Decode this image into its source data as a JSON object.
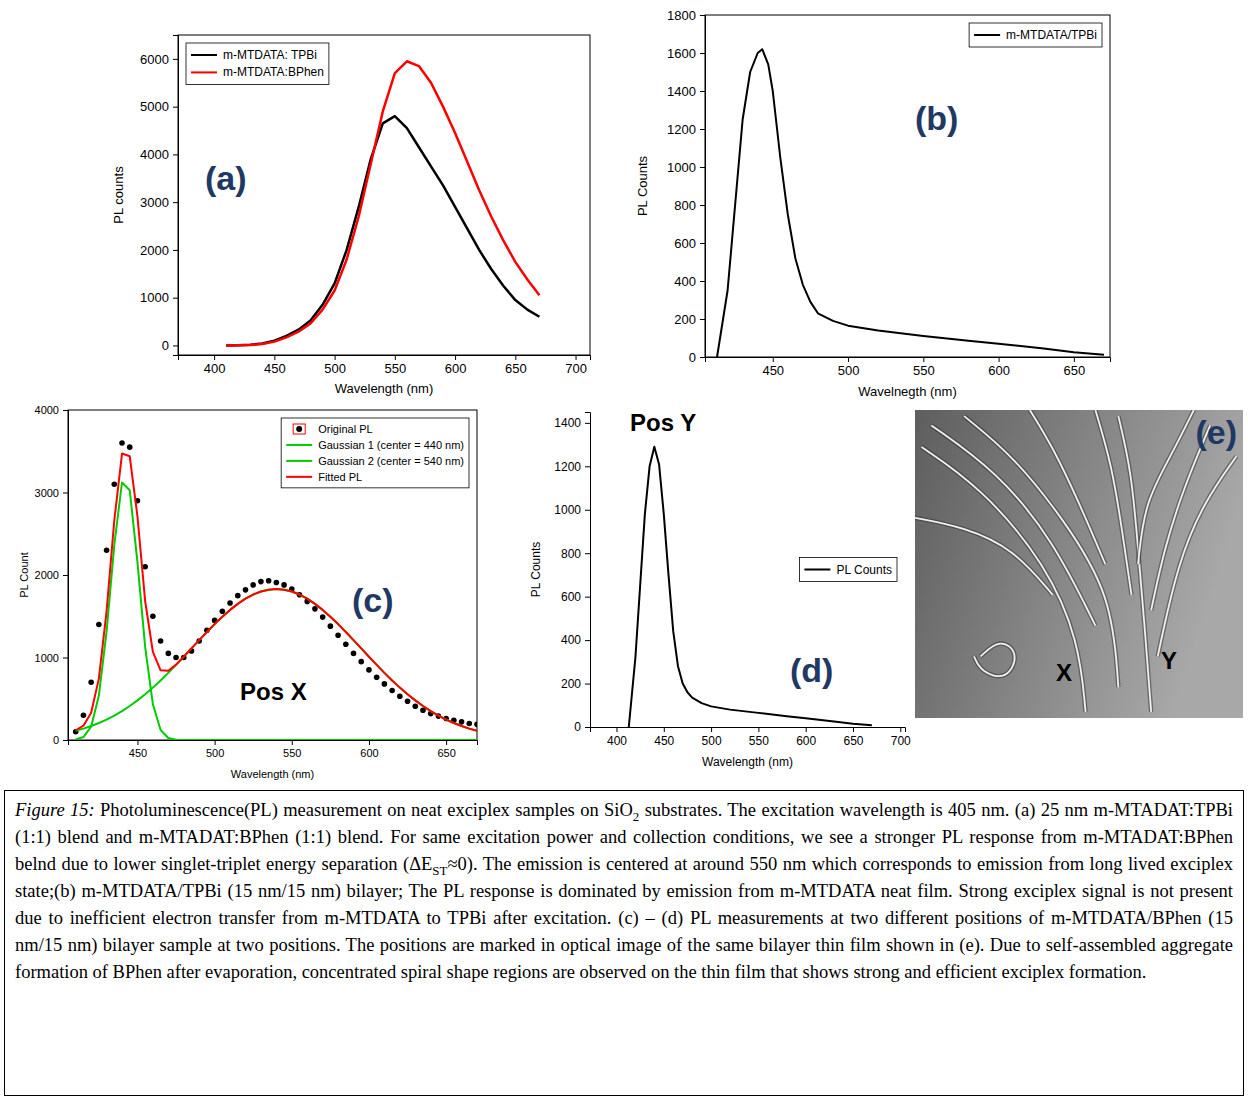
{
  "chart_data": [
    {
      "type": "line",
      "panel_label": "(a)",
      "x_label": "Wavelength (nm)",
      "y_label": "PL counts",
      "x": [
        410,
        420,
        430,
        440,
        450,
        460,
        470,
        480,
        490,
        500,
        510,
        520,
        530,
        540,
        550,
        560,
        570,
        580,
        590,
        600,
        610,
        620,
        630,
        640,
        650,
        660,
        670
      ],
      "xlim": [
        370,
        712
      ],
      "xticks": [
        400,
        450,
        500,
        550,
        600,
        650,
        700
      ],
      "ylim": [
        -200,
        6500
      ],
      "yticks": [
        0,
        1000,
        2000,
        3000,
        4000,
        5000,
        6000
      ],
      "legend": "top-left",
      "series": [
        {
          "name": "m-MTDATA: TPBi",
          "color": "#000000",
          "values": [
            0,
            5,
            15,
            40,
            100,
            200,
            330,
            520,
            850,
            1300,
            2000,
            2900,
            3900,
            4650,
            4800,
            4550,
            4150,
            3750,
            3350,
            2900,
            2450,
            2000,
            1600,
            1250,
            950,
            750,
            600
          ]
        },
        {
          "name": "m-MTDATA:BPhen",
          "color": "#ff0000",
          "values": [
            0,
            3,
            10,
            30,
            80,
            170,
            290,
            460,
            750,
            1150,
            1800,
            2700,
            3800,
            4900,
            5700,
            5950,
            5850,
            5500,
            5000,
            4450,
            3850,
            3250,
            2700,
            2200,
            1750,
            1380,
            1050
          ]
        }
      ]
    },
    {
      "type": "line",
      "panel_label": "(b)",
      "x_label": "Wavelnegth (nm)",
      "y_label": "PL Counts",
      "x": [
        413,
        420,
        425,
        430,
        435,
        440,
        443,
        447,
        450,
        455,
        460,
        465,
        470,
        475,
        480,
        490,
        500,
        520,
        550,
        580,
        600,
        630,
        650,
        670
      ],
      "xlim": [
        405,
        674
      ],
      "xticks": [
        450,
        500,
        550,
        600,
        650
      ],
      "ylim": [
        0,
        1800
      ],
      "yticks": [
        0,
        200,
        400,
        600,
        800,
        1000,
        1200,
        1400,
        1600,
        1800
      ],
      "legend": "top-right",
      "series": [
        {
          "name": "m-MTDATA/TPBi",
          "color": "#000000",
          "values": [
            0,
            350,
            800,
            1250,
            1500,
            1600,
            1620,
            1540,
            1400,
            1050,
            750,
            520,
            380,
            290,
            230,
            190,
            165,
            140,
            110,
            85,
            70,
            45,
            25,
            12
          ]
        }
      ]
    },
    {
      "type": "line",
      "panel_label": "(c)",
      "x_label": "Wavelength (nm)",
      "y_label": "PL Count",
      "annotation": "Pos X",
      "x": [
        410,
        415,
        420,
        425,
        430,
        435,
        440,
        445,
        450,
        455,
        460,
        465,
        470,
        475,
        480,
        485,
        490,
        495,
        500,
        505,
        510,
        515,
        520,
        525,
        530,
        535,
        540,
        545,
        550,
        555,
        560,
        565,
        570,
        575,
        580,
        585,
        590,
        595,
        600,
        605,
        610,
        615,
        620,
        625,
        630,
        635,
        640,
        645,
        650,
        655,
        660,
        665,
        670
      ],
      "xlim": [
        405,
        670
      ],
      "xticks": [
        450,
        500,
        550,
        600,
        650
      ],
      "ylim": [
        0,
        4000
      ],
      "yticks": [
        0,
        1000,
        2000,
        3000,
        4000
      ],
      "legend": "top-right",
      "series": [
        {
          "name": "Original PL",
          "type": "scatter",
          "marker": "circle",
          "color": "#000000",
          "values": [
            100,
            300,
            700,
            1400,
            2300,
            3100,
            3600,
            3550,
            2900,
            2100,
            1500,
            1200,
            1050,
            1000,
            1000,
            1080,
            1200,
            1330,
            1450,
            1560,
            1660,
            1750,
            1820,
            1880,
            1920,
            1930,
            1910,
            1880,
            1830,
            1760,
            1680,
            1590,
            1490,
            1380,
            1270,
            1160,
            1050,
            950,
            850,
            760,
            680,
            600,
            530,
            470,
            410,
            360,
            320,
            290,
            260,
            240,
            220,
            200,
            190
          ]
        },
        {
          "name": "Gaussian 1 (center = 440 nm)",
          "color": "#00cc00",
          "values": [
            6,
            36,
            161,
            538,
            1315,
            2366,
            3122,
            3027,
            2156,
            1127,
            433,
            122,
            25,
            4,
            0,
            0,
            0,
            0,
            0,
            0,
            0,
            0,
            0,
            0,
            0,
            0,
            0,
            0,
            0,
            0,
            0,
            0,
            0,
            0,
            0,
            0,
            0,
            0,
            0,
            0,
            0,
            0,
            0,
            0,
            0,
            0,
            0,
            0,
            0,
            0,
            0,
            0,
            0
          ]
        },
        {
          "name": "Gaussian 2 (center = 540 nm)",
          "color": "#00cc00",
          "values": [
            112,
            138,
            170,
            206,
            248,
            296,
            350,
            412,
            480,
            555,
            635,
            722,
            814,
            910,
            1009,
            1110,
            1211,
            1309,
            1405,
            1495,
            1577,
            1650,
            1713,
            1763,
            1800,
            1822,
            1830,
            1822,
            1800,
            1763,
            1713,
            1650,
            1577,
            1495,
            1405,
            1309,
            1211,
            1110,
            1009,
            910,
            814,
            722,
            635,
            555,
            480,
            412,
            350,
            296,
            248,
            206,
            170,
            138,
            112
          ]
        },
        {
          "name": "Fitted PL",
          "color": "#ff0000",
          "values": [
            118,
            174,
            331,
            744,
            1563,
            2662,
            3472,
            3439,
            2711,
            1682,
            1068,
            844,
            839,
            914,
            1009,
            1110,
            1211,
            1309,
            1405,
            1495,
            1577,
            1650,
            1713,
            1763,
            1800,
            1822,
            1830,
            1822,
            1800,
            1763,
            1713,
            1650,
            1577,
            1495,
            1405,
            1309,
            1211,
            1110,
            1009,
            910,
            814,
            722,
            635,
            555,
            480,
            412,
            350,
            296,
            248,
            206,
            170,
            138,
            112
          ]
        }
      ]
    },
    {
      "type": "line",
      "panel_label": "(d)",
      "x_label": "Wavelength (nm)",
      "y_label": "PL Counts",
      "annotation": "Pos Y",
      "x": [
        413,
        420,
        425,
        430,
        435,
        440,
        445,
        450,
        455,
        460,
        465,
        470,
        475,
        480,
        490,
        500,
        520,
        550,
        580,
        600,
        630,
        650,
        670
      ],
      "xlim": [
        372,
        705
      ],
      "xticks": [
        400,
        450,
        500,
        550,
        600,
        650,
        700
      ],
      "ylim": [
        0,
        1450
      ],
      "yticks": [
        0,
        200,
        400,
        600,
        800,
        1000,
        1200,
        1400
      ],
      "legend": "center-right",
      "series": [
        {
          "name": "PL Counts",
          "color": "#000000",
          "values": [
            0,
            320,
            650,
            980,
            1200,
            1290,
            1210,
            980,
            700,
            440,
            280,
            200,
            160,
            135,
            110,
            95,
            80,
            65,
            50,
            40,
            25,
            15,
            8
          ]
        }
      ]
    }
  ],
  "image": {
    "panel_label": "(e)",
    "markers": [
      "X",
      "Y"
    ]
  },
  "caption": {
    "segments": [
      {
        "text": "Figure 15:",
        "format": "italic"
      },
      {
        "text": " Photoluminescence(PL) measurement on neat exciplex samples on SiO",
        "format": "plain"
      },
      {
        "text": "2",
        "format": "sub"
      },
      {
        "text": " substrates. The excitation wavelength is 405 nm. (a) 25 nm m-MTADAT:TPBi (1:1) blend and m-MTADAT:BPhen (1:1) blend. For same excitation power and collection conditions, we see a stronger PL response from m-MTADAT:BPhen belnd due to lower singlet-triplet energy separation (ΔE",
        "format": "plain"
      },
      {
        "text": "ST",
        "format": "sub"
      },
      {
        "text": "≈0). The emission is centered at around 550 nm which corresponds to emission from long lived exciplex state;(b) m-MTDATA/TPBi (15 nm/15 nm) bilayer; The PL response is dominated by emission from m-MTDATA neat film. Strong exciplex signal is not present due to inefficient electron transfer from m-MTDATA to TPBi after excitation. (c) – (d) PL measurements at two different positions of m-MTDATA/BPhen (15 nm/15 nm) bilayer sample at two positions. The positions are marked in optical image of the same bilayer thin film shown in (e). Due to self-assembled aggregate formation of BPhen after evaporation,  concentrated spiral shape regions are observed on the thin film that shows strong and efficient exciplex formation.",
        "format": "plain"
      }
    ]
  }
}
